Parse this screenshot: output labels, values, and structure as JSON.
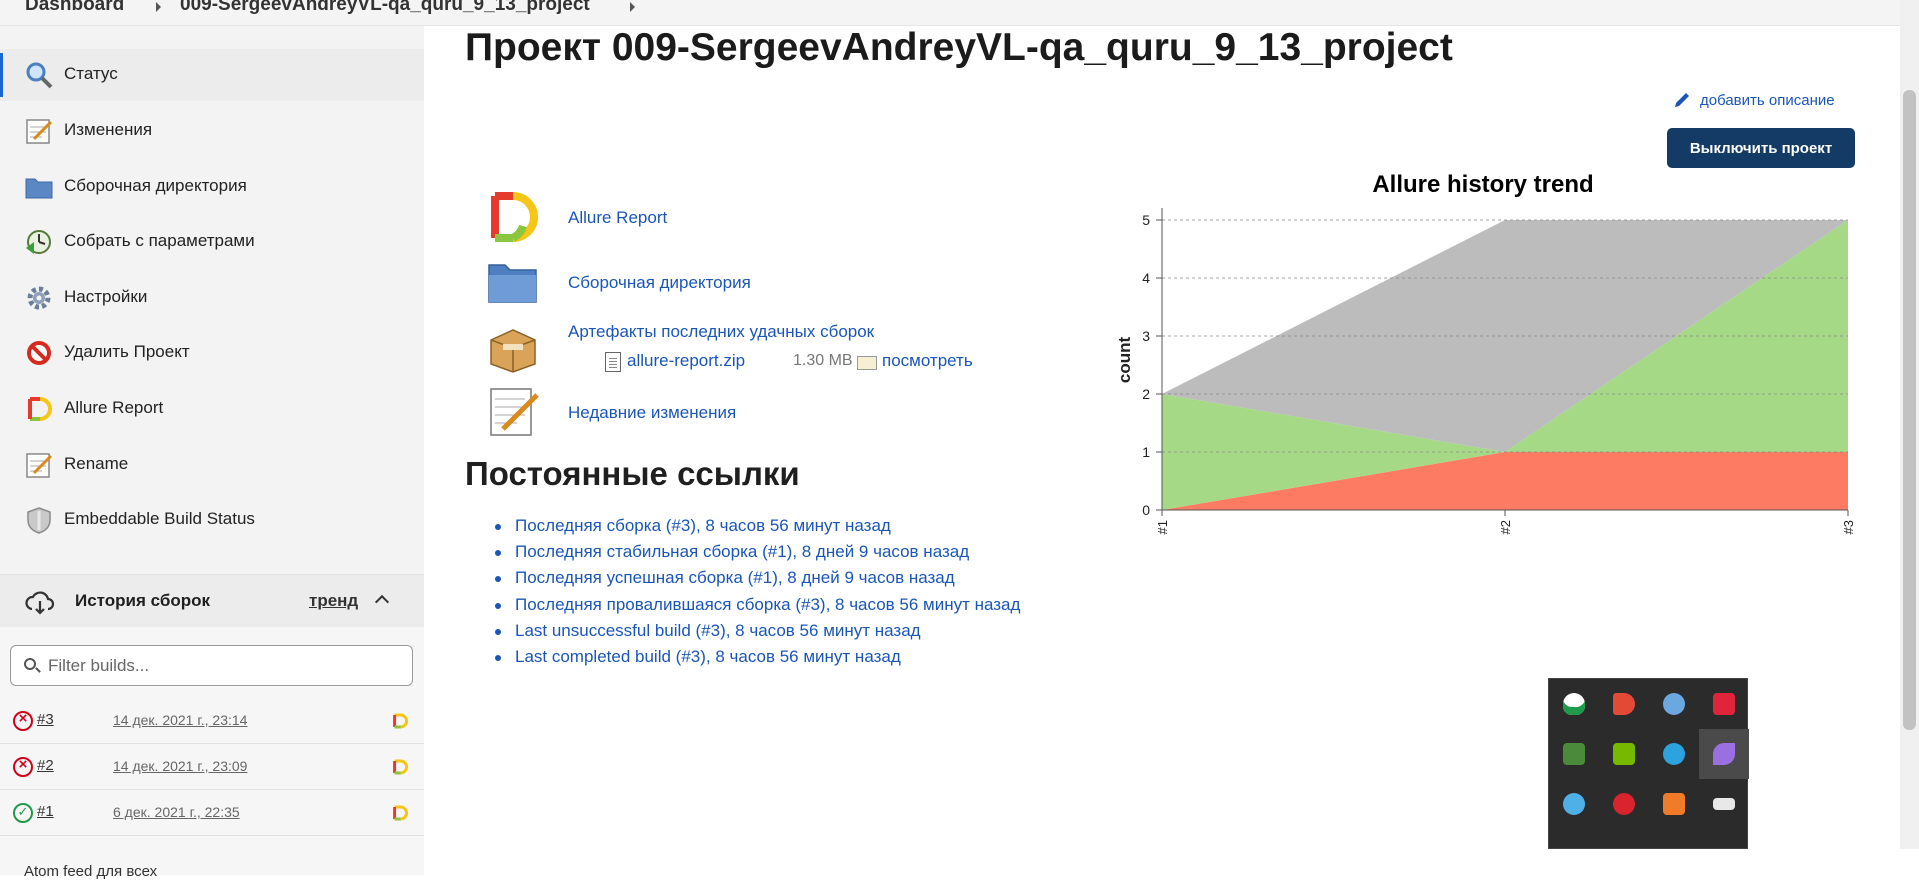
{
  "breadcrumb": {
    "home": "Dashboard",
    "project": "009-SergeevAndreyVL-qa_quru_9_13_project"
  },
  "sidebar": {
    "items": [
      {
        "label": "Статус",
        "icon": "search-icon"
      },
      {
        "label": "Изменения",
        "icon": "notepad-icon"
      },
      {
        "label": "Сборочная директория",
        "icon": "folder-icon"
      },
      {
        "label": "Собрать с параметрами",
        "icon": "clock-build-icon"
      },
      {
        "label": "Настройки",
        "icon": "gear-icon"
      },
      {
        "label": "Удалить Проект",
        "icon": "no-entry-icon"
      },
      {
        "label": "Allure Report",
        "icon": "allure-icon"
      },
      {
        "label": "Rename",
        "icon": "notepad-icon"
      },
      {
        "label": "Embeddable Build Status",
        "icon": "shield-icon"
      }
    ]
  },
  "history": {
    "title": "История сборок",
    "trend": "тренд",
    "filter_placeholder": "Filter builds...",
    "builds": [
      {
        "number": "#3",
        "date": "14 дек. 2021 г., 23:14",
        "status": "failed"
      },
      {
        "number": "#2",
        "date": "14 дек. 2021 г., 23:09",
        "status": "failed"
      },
      {
        "number": "#1",
        "date": "6 дек. 2021 г., 22:35",
        "status": "success"
      }
    ],
    "atom": "Atom feed для всех"
  },
  "main": {
    "title": "Проект 009-SergeevAndreyVL-qa_quru_9_13_project",
    "add_description": "добавить описание",
    "disable_button": "Выключить проект",
    "links": {
      "allure": "Allure Report",
      "workspace": "Сборочная директория",
      "artifacts": "Артефакты последних удачных сборок",
      "recent_changes": "Недавние изменения"
    },
    "artifact": {
      "file": "allure-report.zip",
      "size": "1.30 MB",
      "view": "посмотреть"
    },
    "permalinks_title": "Постоянные ссылки",
    "permalinks": [
      "Последняя сборка (#3), 8 часов 56 минут назад",
      "Последняя стабильная сборка (#1), 8 дней 9 часов назад",
      "Последняя успешная сборка (#1), 8 дней 9 часов назад",
      "Последняя провалившаяся сборка (#3), 8 часов 56 минут назад",
      "Last unsuccessful build (#3), 8 часов 56 минут назад",
      "Last completed build (#3), 8 часов 56 минут назад"
    ]
  },
  "chart_data": {
    "type": "area",
    "title": "Allure history trend",
    "ylabel": "count",
    "xlabel": "",
    "categories": [
      "#1",
      "#2",
      "#3"
    ],
    "ylim": [
      0,
      5
    ],
    "yticks": [
      0,
      1,
      2,
      3,
      4,
      5
    ],
    "stacked": true,
    "grid": true,
    "series": [
      {
        "status": "failed",
        "color": "#fd7b63",
        "values": [
          0,
          1,
          1
        ]
      },
      {
        "status": "passed",
        "color": "#a5d986",
        "values": [
          2,
          0,
          4
        ]
      },
      {
        "status": "unknown",
        "color": "#bcbcbc",
        "values": [
          0,
          4,
          0
        ]
      }
    ]
  },
  "colors": {
    "accent": "#1a56b8",
    "button": "#143b66",
    "failed": "#d0021b",
    "success": "#1e9b4a"
  },
  "tray_icons": [
    "shield-check-icon",
    "speaker-icon",
    "globe-icon",
    "antivirus-icon",
    "monitor-icon",
    "nvidia-icon",
    "telegram-icon",
    "feather-icon",
    "paint-icon",
    "alarm-icon",
    "app-icon",
    "battery-icon"
  ]
}
